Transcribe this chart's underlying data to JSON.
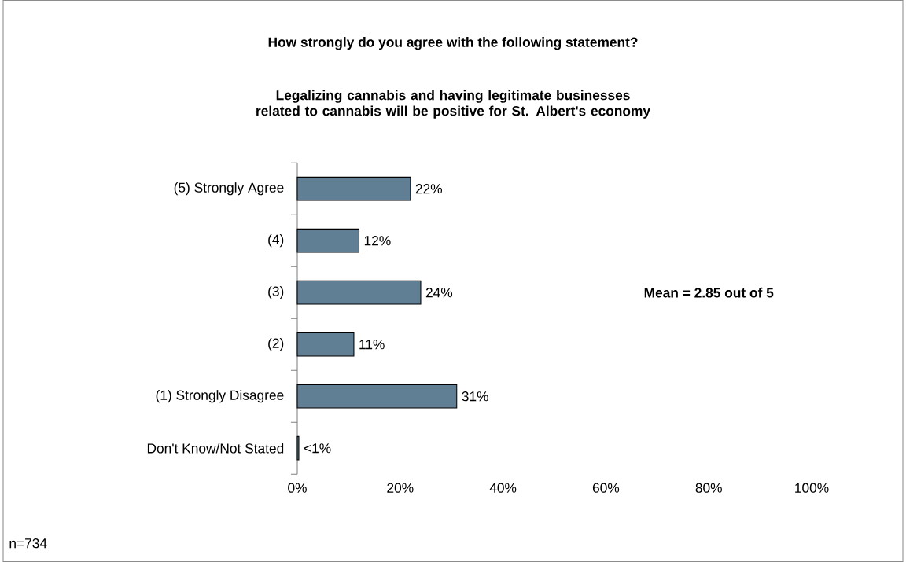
{
  "chart_data": {
    "type": "bar",
    "orientation": "horizontal",
    "title": "How strongly do you agree with the following statement?",
    "subtitle": "Legalizing cannabis and having legitimate businesses related to cannabis will be positive for St. Albert's economy",
    "categories": [
      "(5) Strongly Agree",
      "(4)",
      "(3)",
      "(2)",
      "(1) Strongly Disagree",
      "Don't Know/Not Stated"
    ],
    "values": [
      22,
      12,
      24,
      11,
      31,
      0.3
    ],
    "value_labels": [
      "22%",
      "12%",
      "24%",
      "11%",
      "31%",
      "<1%"
    ],
    "color": "#607f95",
    "xlim": [
      0,
      100
    ],
    "xticks": [
      {
        "value": 0,
        "label": "0%"
      },
      {
        "value": 20,
        "label": "20%"
      },
      {
        "value": 40,
        "label": "40%"
      },
      {
        "value": 60,
        "label": "60%"
      },
      {
        "value": 80,
        "label": "80%"
      },
      {
        "value": 100,
        "label": "100%"
      }
    ],
    "annotations": [
      "Mean = 2.85 out of 5",
      "n=734"
    ],
    "grid": false
  }
}
